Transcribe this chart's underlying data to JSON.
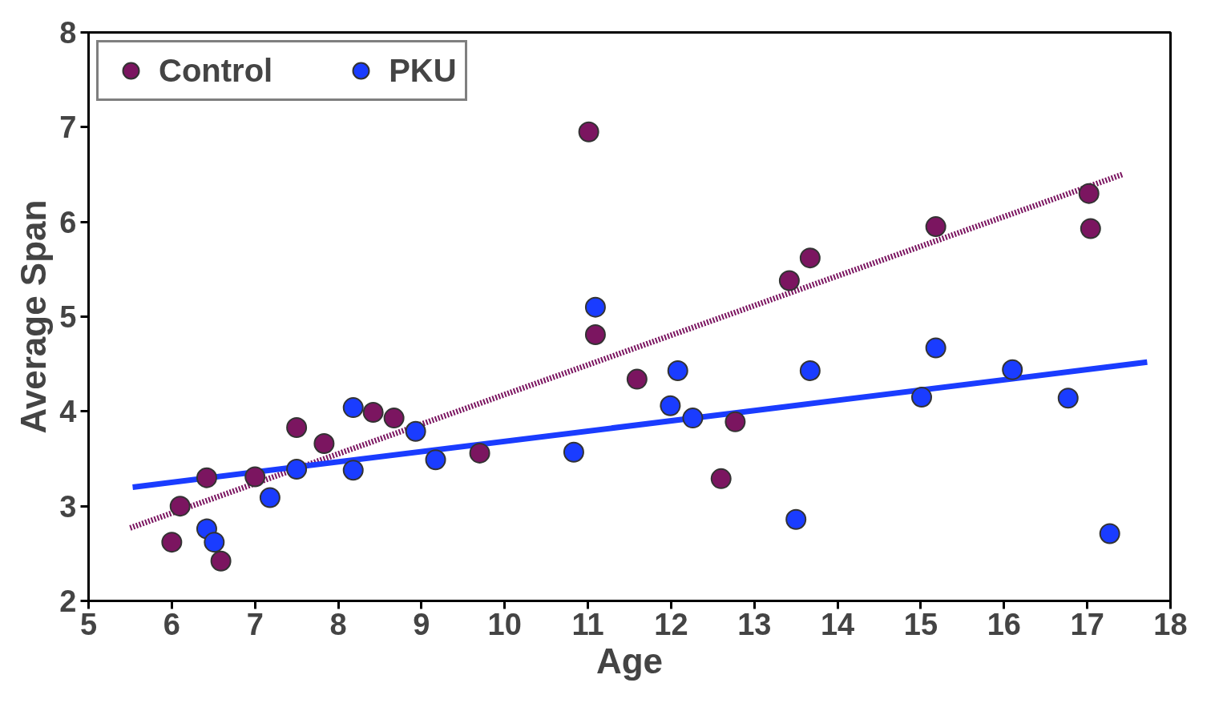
{
  "chart_data": {
    "type": "scatter",
    "xlabel": "Age",
    "ylabel": "Average Span",
    "xlim": [
      5,
      18
    ],
    "ylim": [
      2,
      8
    ],
    "xticks": [
      5,
      6,
      7,
      8,
      9,
      10,
      11,
      12,
      13,
      14,
      15,
      16,
      17,
      18
    ],
    "yticks": [
      2,
      3,
      4,
      5,
      6,
      7,
      8
    ],
    "grid": false,
    "legend": "top left",
    "marker": "circle",
    "series": [
      {
        "type": "line",
        "color": "#7b1560",
        "line_style": "dotted",
        "marker": "none",
        "x": [
          5.5,
          17.42
        ],
        "values": [
          2.77,
          6.5
        ]
      },
      {
        "type": "line",
        "color": "#1a3cff",
        "line_style": "solid",
        "marker": "none",
        "x": [
          5.53,
          17.72
        ],
        "values": [
          3.2,
          4.52
        ]
      },
      {
        "name": "Control",
        "color": "#7b1560",
        "x": [
          6.0,
          6.1,
          6.42,
          6.59,
          7.0,
          7.5,
          7.83,
          8.42,
          8.67,
          9.7,
          11.01,
          11.09,
          11.59,
          12.6,
          12.77,
          13.42,
          13.67,
          15.18,
          17.02,
          17.04
        ],
        "values": [
          2.62,
          3.0,
          3.3,
          2.42,
          3.31,
          3.83,
          3.66,
          3.99,
          3.93,
          3.56,
          6.95,
          4.81,
          4.34,
          3.29,
          3.89,
          5.38,
          5.62,
          5.95,
          6.3,
          5.93
        ]
      },
      {
        "name": "PKU",
        "color": "#1a3cff",
        "x": [
          6.42,
          6.51,
          7.18,
          7.5,
          8.18,
          8.18,
          8.93,
          9.17,
          10.83,
          11.09,
          11.99,
          12.08,
          12.26,
          13.5,
          13.67,
          15.01,
          15.18,
          16.1,
          16.77,
          17.27
        ],
        "values": [
          2.76,
          2.62,
          3.09,
          3.39,
          4.04,
          3.38,
          3.79,
          3.49,
          3.57,
          5.1,
          4.06,
          4.43,
          3.93,
          2.86,
          4.43,
          4.15,
          4.67,
          4.44,
          4.14,
          2.71
        ]
      }
    ]
  }
}
